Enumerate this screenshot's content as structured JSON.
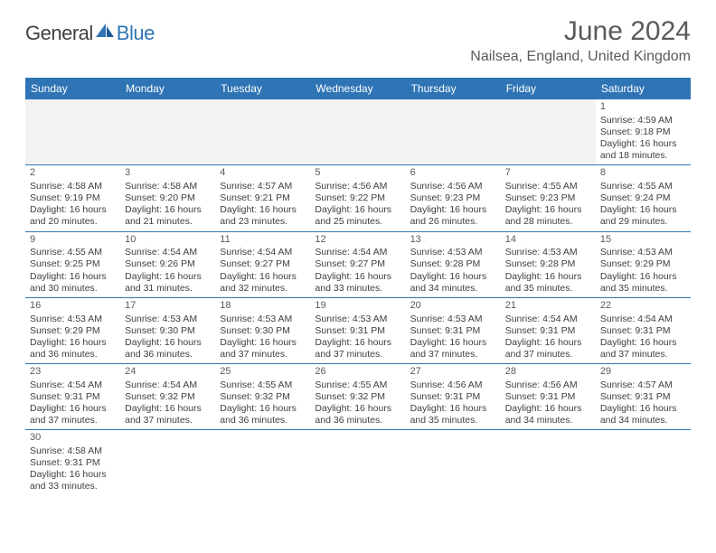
{
  "logo": {
    "part1": "General",
    "part2": "Blue"
  },
  "title": "June 2024",
  "location": "Nailsea, England, United Kingdom",
  "colors": {
    "accent": "#2f74b5",
    "header_text": "#ffffff",
    "body_text": "#404040",
    "muted_bg": "#f2f2f2",
    "title_text": "#5a5a5a"
  },
  "days_of_week": [
    "Sunday",
    "Monday",
    "Tuesday",
    "Wednesday",
    "Thursday",
    "Friday",
    "Saturday"
  ],
  "weeks": [
    [
      {
        "empty": true
      },
      {
        "empty": true
      },
      {
        "empty": true
      },
      {
        "empty": true
      },
      {
        "empty": true
      },
      {
        "empty": true
      },
      {
        "n": "1",
        "sr": "Sunrise: 4:59 AM",
        "ss": "Sunset: 9:18 PM",
        "d1": "Daylight: 16 hours",
        "d2": "and 18 minutes."
      }
    ],
    [
      {
        "n": "2",
        "sr": "Sunrise: 4:58 AM",
        "ss": "Sunset: 9:19 PM",
        "d1": "Daylight: 16 hours",
        "d2": "and 20 minutes."
      },
      {
        "n": "3",
        "sr": "Sunrise: 4:58 AM",
        "ss": "Sunset: 9:20 PM",
        "d1": "Daylight: 16 hours",
        "d2": "and 21 minutes."
      },
      {
        "n": "4",
        "sr": "Sunrise: 4:57 AM",
        "ss": "Sunset: 9:21 PM",
        "d1": "Daylight: 16 hours",
        "d2": "and 23 minutes."
      },
      {
        "n": "5",
        "sr": "Sunrise: 4:56 AM",
        "ss": "Sunset: 9:22 PM",
        "d1": "Daylight: 16 hours",
        "d2": "and 25 minutes."
      },
      {
        "n": "6",
        "sr": "Sunrise: 4:56 AM",
        "ss": "Sunset: 9:23 PM",
        "d1": "Daylight: 16 hours",
        "d2": "and 26 minutes."
      },
      {
        "n": "7",
        "sr": "Sunrise: 4:55 AM",
        "ss": "Sunset: 9:23 PM",
        "d1": "Daylight: 16 hours",
        "d2": "and 28 minutes."
      },
      {
        "n": "8",
        "sr": "Sunrise: 4:55 AM",
        "ss": "Sunset: 9:24 PM",
        "d1": "Daylight: 16 hours",
        "d2": "and 29 minutes."
      }
    ],
    [
      {
        "n": "9",
        "sr": "Sunrise: 4:55 AM",
        "ss": "Sunset: 9:25 PM",
        "d1": "Daylight: 16 hours",
        "d2": "and 30 minutes."
      },
      {
        "n": "10",
        "sr": "Sunrise: 4:54 AM",
        "ss": "Sunset: 9:26 PM",
        "d1": "Daylight: 16 hours",
        "d2": "and 31 minutes."
      },
      {
        "n": "11",
        "sr": "Sunrise: 4:54 AM",
        "ss": "Sunset: 9:27 PM",
        "d1": "Daylight: 16 hours",
        "d2": "and 32 minutes."
      },
      {
        "n": "12",
        "sr": "Sunrise: 4:54 AM",
        "ss": "Sunset: 9:27 PM",
        "d1": "Daylight: 16 hours",
        "d2": "and 33 minutes."
      },
      {
        "n": "13",
        "sr": "Sunrise: 4:53 AM",
        "ss": "Sunset: 9:28 PM",
        "d1": "Daylight: 16 hours",
        "d2": "and 34 minutes."
      },
      {
        "n": "14",
        "sr": "Sunrise: 4:53 AM",
        "ss": "Sunset: 9:28 PM",
        "d1": "Daylight: 16 hours",
        "d2": "and 35 minutes."
      },
      {
        "n": "15",
        "sr": "Sunrise: 4:53 AM",
        "ss": "Sunset: 9:29 PM",
        "d1": "Daylight: 16 hours",
        "d2": "and 35 minutes."
      }
    ],
    [
      {
        "n": "16",
        "sr": "Sunrise: 4:53 AM",
        "ss": "Sunset: 9:29 PM",
        "d1": "Daylight: 16 hours",
        "d2": "and 36 minutes."
      },
      {
        "n": "17",
        "sr": "Sunrise: 4:53 AM",
        "ss": "Sunset: 9:30 PM",
        "d1": "Daylight: 16 hours",
        "d2": "and 36 minutes."
      },
      {
        "n": "18",
        "sr": "Sunrise: 4:53 AM",
        "ss": "Sunset: 9:30 PM",
        "d1": "Daylight: 16 hours",
        "d2": "and 37 minutes."
      },
      {
        "n": "19",
        "sr": "Sunrise: 4:53 AM",
        "ss": "Sunset: 9:31 PM",
        "d1": "Daylight: 16 hours",
        "d2": "and 37 minutes."
      },
      {
        "n": "20",
        "sr": "Sunrise: 4:53 AM",
        "ss": "Sunset: 9:31 PM",
        "d1": "Daylight: 16 hours",
        "d2": "and 37 minutes."
      },
      {
        "n": "21",
        "sr": "Sunrise: 4:54 AM",
        "ss": "Sunset: 9:31 PM",
        "d1": "Daylight: 16 hours",
        "d2": "and 37 minutes."
      },
      {
        "n": "22",
        "sr": "Sunrise: 4:54 AM",
        "ss": "Sunset: 9:31 PM",
        "d1": "Daylight: 16 hours",
        "d2": "and 37 minutes."
      }
    ],
    [
      {
        "n": "23",
        "sr": "Sunrise: 4:54 AM",
        "ss": "Sunset: 9:31 PM",
        "d1": "Daylight: 16 hours",
        "d2": "and 37 minutes."
      },
      {
        "n": "24",
        "sr": "Sunrise: 4:54 AM",
        "ss": "Sunset: 9:32 PM",
        "d1": "Daylight: 16 hours",
        "d2": "and 37 minutes."
      },
      {
        "n": "25",
        "sr": "Sunrise: 4:55 AM",
        "ss": "Sunset: 9:32 PM",
        "d1": "Daylight: 16 hours",
        "d2": "and 36 minutes."
      },
      {
        "n": "26",
        "sr": "Sunrise: 4:55 AM",
        "ss": "Sunset: 9:32 PM",
        "d1": "Daylight: 16 hours",
        "d2": "and 36 minutes."
      },
      {
        "n": "27",
        "sr": "Sunrise: 4:56 AM",
        "ss": "Sunset: 9:31 PM",
        "d1": "Daylight: 16 hours",
        "d2": "and 35 minutes."
      },
      {
        "n": "28",
        "sr": "Sunrise: 4:56 AM",
        "ss": "Sunset: 9:31 PM",
        "d1": "Daylight: 16 hours",
        "d2": "and 34 minutes."
      },
      {
        "n": "29",
        "sr": "Sunrise: 4:57 AM",
        "ss": "Sunset: 9:31 PM",
        "d1": "Daylight: 16 hours",
        "d2": "and 34 minutes."
      }
    ],
    [
      {
        "n": "30",
        "sr": "Sunrise: 4:58 AM",
        "ss": "Sunset: 9:31 PM",
        "d1": "Daylight: 16 hours",
        "d2": "and 33 minutes."
      },
      {
        "empty": true
      },
      {
        "empty": true
      },
      {
        "empty": true
      },
      {
        "empty": true
      },
      {
        "empty": true
      },
      {
        "empty": true
      }
    ]
  ]
}
